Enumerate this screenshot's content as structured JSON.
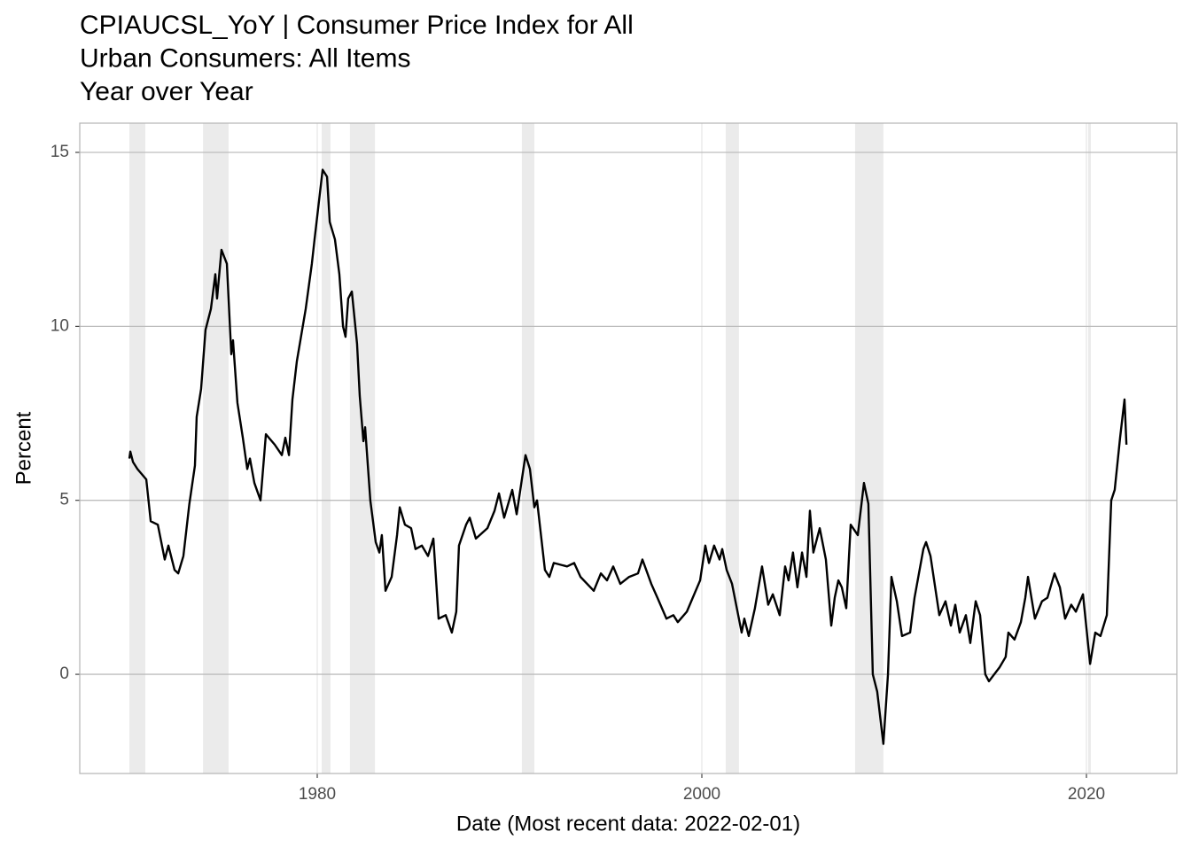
{
  "chart_data": {
    "type": "line",
    "title": [
      "CPIAUCSL_YoY | Consumer Price Index for All",
      "Urban Consumers: All Items",
      "Year over Year"
    ],
    "xlabel": "Date (Most recent data: 2022-02-01)",
    "ylabel": "Percent",
    "xlim": [
      1967.65,
      2024.7
    ],
    "ylim": [
      -2.85,
      15.84
    ],
    "xticks": [
      1980,
      2000,
      2020
    ],
    "yticks": [
      0,
      5,
      10,
      15
    ],
    "grid": true,
    "color": "#000000",
    "recession_color": "#ebebeb",
    "recessions": [
      [
        1970.23,
        1971.06
      ],
      [
        1974.06,
        1975.39
      ],
      [
        1980.23,
        1980.69
      ],
      [
        1981.7,
        1983.0
      ],
      [
        1990.64,
        1991.29
      ],
      [
        2001.24,
        2001.93
      ],
      [
        2007.97,
        2009.44
      ],
      [
        2020.09,
        2020.23
      ]
    ],
    "x": [
      1970.23,
      1970.28,
      1970.42,
      1970.65,
      1971.11,
      1971.34,
      1971.71,
      1972.07,
      1972.26,
      1972.58,
      1972.77,
      1973.04,
      1973.35,
      1973.64,
      1973.73,
      1973.96,
      1974.19,
      1974.47,
      1974.7,
      1974.79,
      1975.02,
      1975.3,
      1975.53,
      1975.62,
      1975.85,
      1976.13,
      1976.36,
      1976.5,
      1976.73,
      1977.05,
      1977.33,
      1977.79,
      1978.16,
      1978.34,
      1978.53,
      1978.71,
      1978.94,
      1979.4,
      1979.72,
      1979.86,
      1980.28,
      1980.51,
      1980.65,
      1980.92,
      1981.15,
      1981.34,
      1981.47,
      1981.61,
      1981.8,
      1982.07,
      1982.21,
      1982.4,
      1982.49,
      1982.76,
      1983.04,
      1983.23,
      1983.36,
      1983.55,
      1983.87,
      1984.15,
      1984.29,
      1984.56,
      1984.88,
      1985.11,
      1985.44,
      1985.76,
      1986.04,
      1986.31,
      1986.68,
      1987.0,
      1987.23,
      1987.37,
      1987.74,
      1987.93,
      1988.25,
      1988.85,
      1989.22,
      1989.45,
      1989.72,
      1990.14,
      1990.37,
      1990.83,
      1991.06,
      1991.29,
      1991.43,
      1991.84,
      1992.07,
      1992.3,
      1992.99,
      1993.36,
      1993.69,
      1994.38,
      1994.75,
      1995.07,
      1995.39,
      1995.76,
      1996.22,
      1996.68,
      1996.91,
      1997.37,
      1997.69,
      1998.16,
      1998.52,
      1998.75,
      1999.22,
      1999.45,
      1999.91,
      2000.18,
      2000.37,
      2000.64,
      2000.92,
      2001.06,
      2001.29,
      2001.57,
      2002.07,
      2002.21,
      2002.44,
      2002.76,
      2003.13,
      2003.45,
      2003.69,
      2004.05,
      2004.33,
      2004.51,
      2004.74,
      2004.97,
      2005.21,
      2005.44,
      2005.62,
      2005.8,
      2006.13,
      2006.45,
      2006.73,
      2006.91,
      2007.1,
      2007.28,
      2007.51,
      2007.74,
      2008.11,
      2008.43,
      2008.66,
      2008.89,
      2009.12,
      2009.44,
      2009.68,
      2009.86,
      2010.14,
      2010.41,
      2010.83,
      2011.06,
      2011.52,
      2011.66,
      2011.89,
      2012.35,
      2012.67,
      2012.95,
      2013.18,
      2013.41,
      2013.73,
      2013.96,
      2014.24,
      2014.47,
      2014.74,
      2014.93,
      2015.48,
      2015.8,
      2015.94,
      2016.26,
      2016.59,
      2016.82,
      2016.96,
      2017.32,
      2017.69,
      2017.97,
      2018.34,
      2018.62,
      2018.89,
      2019.21,
      2019.45,
      2019.82,
      2020.19,
      2020.46,
      2020.73,
      2021.06,
      2021.29,
      2021.47,
      2021.75,
      2021.98,
      2022.08
    ],
    "values": [
      6.2,
      6.4,
      6.1,
      5.9,
      5.6,
      4.4,
      4.3,
      3.3,
      3.7,
      3.0,
      2.9,
      3.4,
      4.9,
      6.0,
      7.4,
      8.2,
      9.9,
      10.5,
      11.5,
      10.8,
      12.2,
      11.8,
      9.2,
      9.6,
      7.8,
      6.8,
      5.9,
      6.2,
      5.5,
      5.0,
      6.9,
      6.6,
      6.3,
      6.8,
      6.3,
      7.9,
      9.0,
      10.5,
      11.8,
      12.5,
      14.5,
      14.3,
      13.0,
      12.5,
      11.5,
      10.0,
      9.7,
      10.8,
      11.0,
      9.5,
      8.0,
      6.7,
      7.1,
      5.0,
      3.8,
      3.5,
      4.0,
      2.4,
      2.8,
      4.0,
      4.8,
      4.3,
      4.2,
      3.6,
      3.7,
      3.4,
      3.9,
      1.6,
      1.7,
      1.2,
      1.8,
      3.7,
      4.3,
      4.5,
      3.9,
      4.2,
      4.7,
      5.2,
      4.5,
      5.3,
      4.6,
      6.3,
      5.9,
      4.8,
      5.0,
      3.0,
      2.8,
      3.2,
      3.1,
      3.2,
      2.8,
      2.4,
      2.9,
      2.7,
      3.1,
      2.6,
      2.8,
      2.9,
      3.3,
      2.6,
      2.2,
      1.6,
      1.7,
      1.5,
      1.8,
      2.1,
      2.7,
      3.7,
      3.2,
      3.7,
      3.3,
      3.6,
      3.0,
      2.6,
      1.2,
      1.6,
      1.1,
      1.9,
      3.1,
      2.0,
      2.3,
      1.7,
      3.1,
      2.7,
      3.5,
      2.5,
      3.5,
      2.8,
      4.7,
      3.5,
      4.2,
      3.3,
      1.4,
      2.2,
      2.7,
      2.5,
      1.9,
      4.3,
      4.0,
      5.5,
      4.9,
      0.0,
      -0.5,
      -2.0,
      0.0,
      2.8,
      2.1,
      1.1,
      1.2,
      2.2,
      3.6,
      3.8,
      3.4,
      1.7,
      2.1,
      1.4,
      2.0,
      1.2,
      1.7,
      0.9,
      2.1,
      1.7,
      0.0,
      -0.2,
      0.2,
      0.5,
      1.2,
      1.0,
      1.5,
      2.2,
      2.8,
      1.6,
      2.1,
      2.2,
      2.9,
      2.5,
      1.6,
      2.0,
      1.8,
      2.3,
      0.3,
      1.2,
      1.1,
      1.7,
      5.0,
      5.3,
      6.8,
      7.9,
      6.6
    ]
  }
}
